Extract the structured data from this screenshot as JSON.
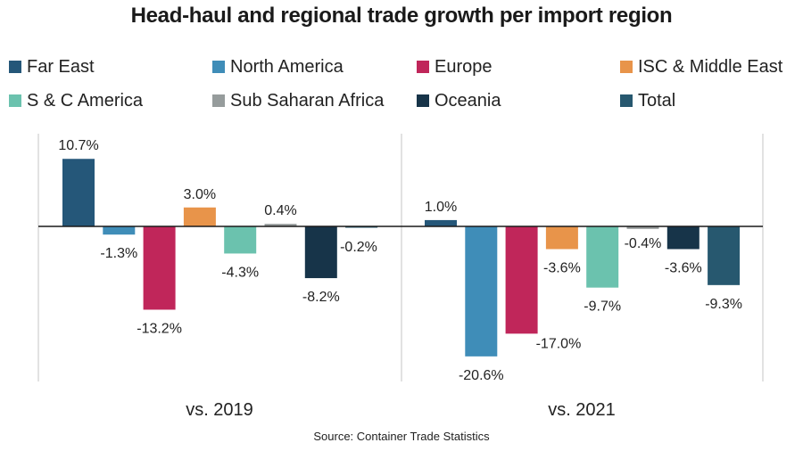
{
  "chart_data": {
    "type": "bar",
    "title": "Head-haul and regional trade growth per import region",
    "source": "Source: Container Trade Statistics",
    "categories": [
      "vs. 2019",
      "vs. 2021"
    ],
    "series": [
      {
        "name": "Far East",
        "color": "#255779",
        "values": [
          10.7,
          1.0
        ],
        "labels": [
          "10.7%",
          "1.0%"
        ]
      },
      {
        "name": "North America",
        "color": "#3f8db8",
        "values": [
          -1.3,
          -20.6
        ],
        "labels": [
          "-1.3%",
          "-20.6%"
        ]
      },
      {
        "name": "Europe",
        "color": "#c0265a",
        "values": [
          -13.2,
          -17.0
        ],
        "labels": [
          "-13.2%",
          "-17.0%"
        ]
      },
      {
        "name": "ISC & Middle East",
        "color": "#e8944a",
        "values": [
          3.0,
          -3.6
        ],
        "labels": [
          "3.0%",
          "-3.6%"
        ]
      },
      {
        "name": "S & C America",
        "color": "#6bc2ae",
        "values": [
          -4.3,
          -9.7
        ],
        "labels": [
          "-4.3%",
          "-9.7%"
        ]
      },
      {
        "name": "Sub Saharan Africa",
        "color": "#969c9c",
        "values": [
          0.4,
          -0.4
        ],
        "labels": [
          "0.4%",
          "-0.4%"
        ]
      },
      {
        "name": "Oceania",
        "color": "#173449",
        "values": [
          -8.2,
          -3.6
        ],
        "labels": [
          "-8.2%",
          "-3.6%"
        ]
      },
      {
        "name": "Total",
        "color": "#27586f",
        "values": [
          -0.2,
          -9.3
        ],
        "labels": [
          "-0.2%",
          "-9.3%"
        ]
      }
    ],
    "xlabel": "",
    "ylabel": "",
    "grid": false,
    "legend_position": "top",
    "ylim": [
      -20.6,
      10.7
    ]
  }
}
